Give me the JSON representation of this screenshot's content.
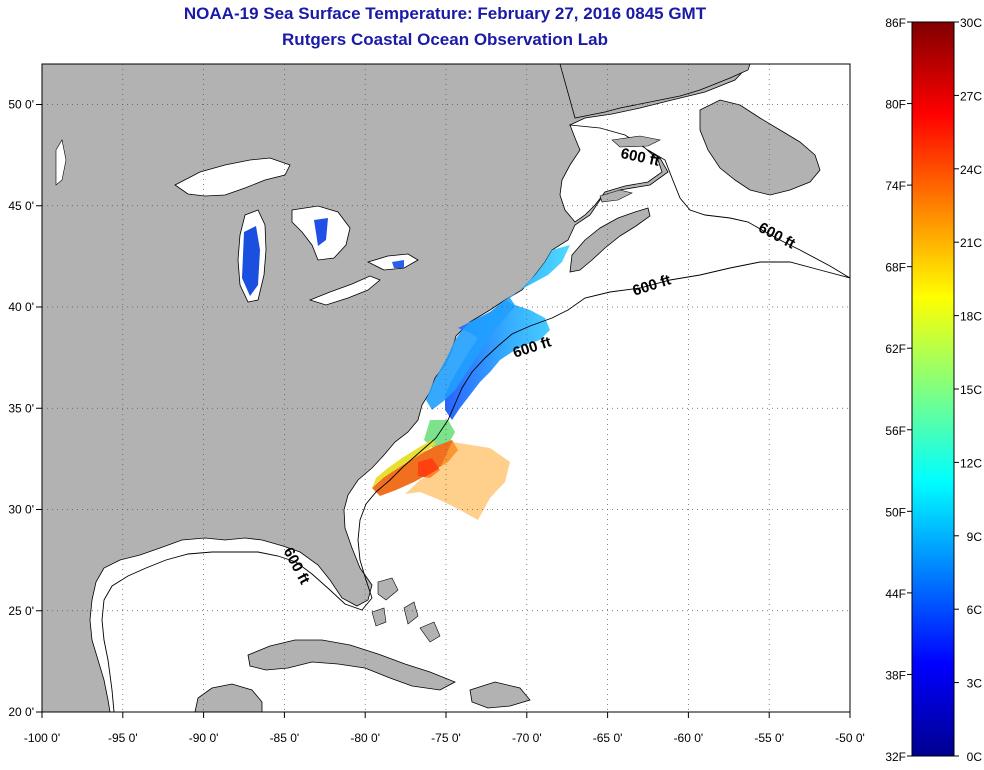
{
  "title": "NOAA-19 Sea Surface Temperature:  February 27, 2016 0845 GMT",
  "subtitle": "Rutgers Coastal Ocean Observation Lab",
  "map": {
    "lon_range": [
      -100,
      -50
    ],
    "lat_range": [
      20,
      52
    ],
    "land_color": "#b2b2b2",
    "ocean_color": "#ffffff",
    "grid": "dotted",
    "lon_ticks": [
      {
        "value": -100,
        "label": "-100 0'"
      },
      {
        "value": -95,
        "label": "-95 0'"
      },
      {
        "value": -90,
        "label": "-90 0'"
      },
      {
        "value": -85,
        "label": "-85 0'"
      },
      {
        "value": -80,
        "label": "-80 0'"
      },
      {
        "value": -75,
        "label": "-75 0'"
      },
      {
        "value": -70,
        "label": "-70 0'"
      },
      {
        "value": -65,
        "label": "-65 0'"
      },
      {
        "value": -60,
        "label": "-60 0'"
      },
      {
        "value": -55,
        "label": "-55 0'"
      },
      {
        "value": -50,
        "label": "-50 0'"
      }
    ],
    "lat_ticks": [
      {
        "value": 20,
        "label": "20 0'"
      },
      {
        "value": 25,
        "label": "25 0'"
      },
      {
        "value": 30,
        "label": "30 0'"
      },
      {
        "value": 35,
        "label": "35 0'"
      },
      {
        "value": 40,
        "label": "40 0'"
      },
      {
        "value": 45,
        "label": "45 0'"
      },
      {
        "value": 50,
        "label": "50 0'"
      }
    ],
    "isobath_label": "600 ft"
  },
  "colorbar": {
    "f_labels": [
      "86F",
      "80F",
      "74F",
      "68F",
      "62F",
      "56F",
      "50F",
      "44F",
      "38F",
      "32F"
    ],
    "c_labels": [
      "30C",
      "27C",
      "24C",
      "21C",
      "18C",
      "15C",
      "12C",
      "9C",
      "6C",
      "3C",
      "0C"
    ],
    "colors": [
      "#00008f",
      "#0000ff",
      "#0080ff",
      "#00ffff",
      "#80ff80",
      "#ffff00",
      "#ff8000",
      "#ff0000",
      "#800000"
    ]
  }
}
